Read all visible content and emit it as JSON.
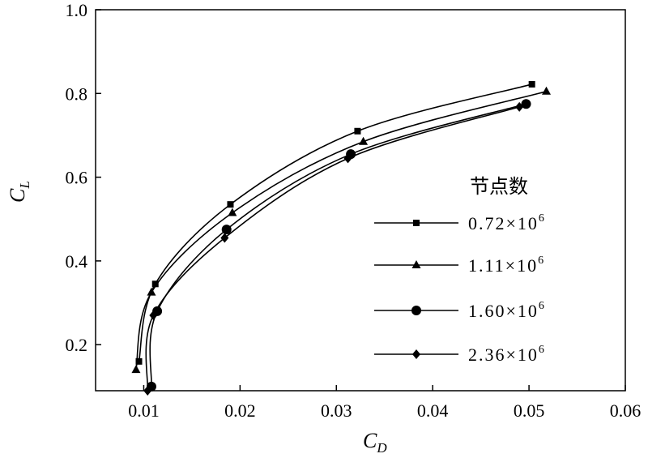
{
  "chart_data": {
    "type": "line",
    "title": "",
    "xlabel_main": "C",
    "xlabel_sub": "D",
    "ylabel_main": "C",
    "ylabel_sub": "L",
    "xlim": [
      0.005,
      0.06
    ],
    "ylim": [
      0.09,
      1.0
    ],
    "x_ticks": [
      0.01,
      0.02,
      0.03,
      0.04,
      0.05,
      0.06
    ],
    "x_tick_labels": [
      "0.01",
      "0.02",
      "0.03",
      "0.04",
      "0.05",
      "0.06"
    ],
    "y_ticks": [
      0.2,
      0.4,
      0.6,
      0.8,
      1.0
    ],
    "y_tick_labels": [
      "0.2",
      "0.4",
      "0.6",
      "0.8",
      "1.0"
    ],
    "grid": false,
    "legend_title": "节点数",
    "legend_position": "right-center",
    "series": [
      {
        "name": "0.72×10⁶",
        "base": "0.72×10",
        "exp": "6",
        "marker": "square",
        "points": [
          [
            0.0095,
            0.16
          ],
          [
            0.0112,
            0.345
          ],
          [
            0.019,
            0.535
          ],
          [
            0.0322,
            0.71
          ],
          [
            0.0503,
            0.822
          ]
        ]
      },
      {
        "name": "1.11×10⁶",
        "base": "1.11×10",
        "exp": "6",
        "marker": "triangle",
        "points": [
          [
            0.0092,
            0.14
          ],
          [
            0.0108,
            0.325
          ],
          [
            0.0192,
            0.515
          ],
          [
            0.0328,
            0.685
          ],
          [
            0.0518,
            0.805
          ]
        ]
      },
      {
        "name": "1.60×10⁶",
        "base": "1.60×10",
        "exp": "6",
        "marker": "circle",
        "points": [
          [
            0.0108,
            0.1
          ],
          [
            0.0114,
            0.28
          ],
          [
            0.0186,
            0.475
          ],
          [
            0.0315,
            0.655
          ],
          [
            0.0497,
            0.775
          ]
        ]
      },
      {
        "name": "2.36×10⁶",
        "base": "2.36×10",
        "exp": "6",
        "marker": "diamond",
        "points": [
          [
            0.0104,
            0.09
          ],
          [
            0.011,
            0.27
          ],
          [
            0.0184,
            0.455
          ],
          [
            0.0312,
            0.645
          ],
          [
            0.049,
            0.768
          ]
        ]
      }
    ]
  }
}
